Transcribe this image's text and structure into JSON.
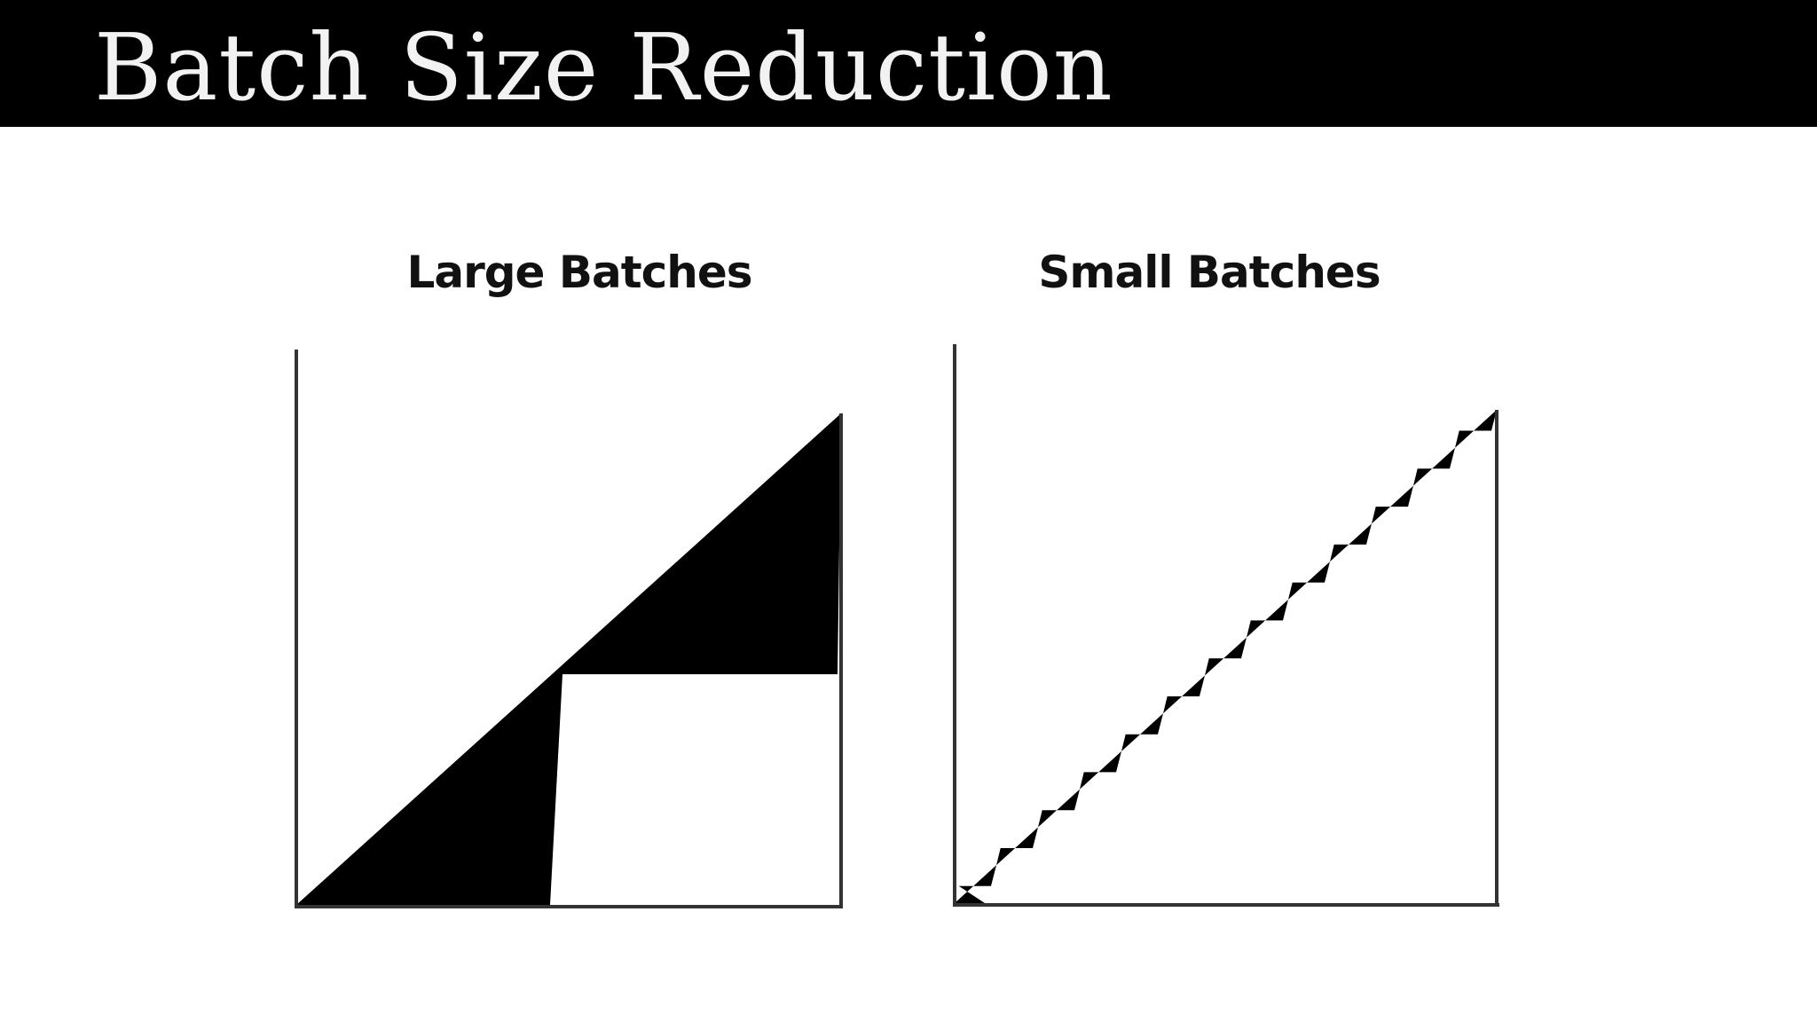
{
  "slide": {
    "title": "Batch Size Reduction",
    "colors": {
      "title_bar": "#000000",
      "title_text": "#f2f2f2",
      "background": "#ffffff",
      "ink": "#000000",
      "axis": "#333333"
    }
  },
  "diagrams": [
    {
      "label": "Large Batches",
      "batch_count": 2
    },
    {
      "label": "Small Batches",
      "batch_count": 13
    }
  ]
}
